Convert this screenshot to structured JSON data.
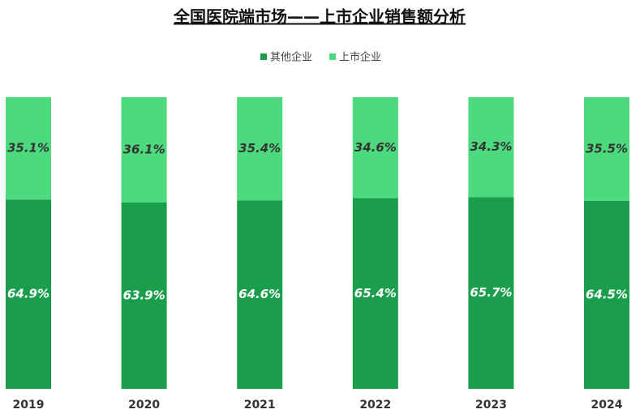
{
  "chart_data": {
    "type": "stacked_bar",
    "title": "全国医院端市场——上市企业销售额分析",
    "categories": [
      "2019",
      "2020",
      "2021",
      "2022",
      "2023",
      "2024"
    ],
    "series": [
      {
        "name": "其他企业",
        "color": "#1a9e4b",
        "values": [
          64.9,
          63.9,
          64.6,
          65.4,
          65.7,
          64.5
        ],
        "value_labels": [
          "64.9%",
          "63.9%",
          "64.6%",
          "65.4%",
          "65.7%",
          "64.5%"
        ]
      },
      {
        "name": "上市企业",
        "color": "#4dd97d",
        "values": [
          35.1,
          36.1,
          35.4,
          34.6,
          34.3,
          35.5
        ],
        "value_labels": [
          "35.1%",
          "36.1%",
          "35.4%",
          "34.6%",
          "34.3%",
          "35.5%"
        ]
      }
    ],
    "ylim": [
      0,
      100
    ],
    "legend": "top"
  }
}
